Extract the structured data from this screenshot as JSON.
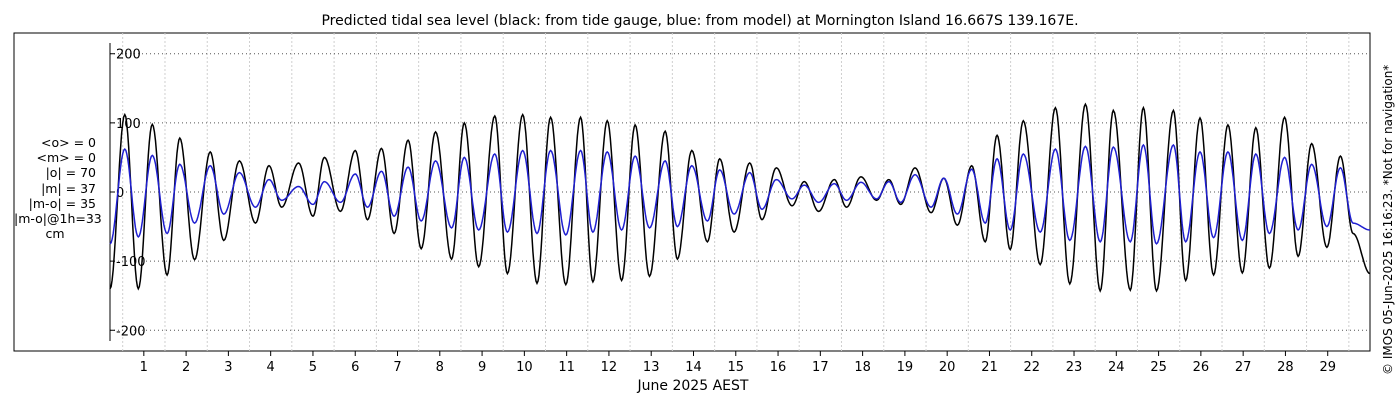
{
  "chart_data": {
    "type": "line",
    "title": "Predicted tidal sea level (black: from tide gauge, blue: from model) at Mornington Island 16.667S 139.167E.",
    "xlabel": "June 2025 AEST",
    "ylabel": "",
    "xlim": [
      0.2,
      30.0
    ],
    "ylim": [
      -230,
      230
    ],
    "x_ticks": [
      1,
      2,
      3,
      4,
      5,
      6,
      7,
      8,
      9,
      10,
      11,
      12,
      13,
      14,
      15,
      16,
      17,
      18,
      19,
      20,
      21,
      22,
      23,
      24,
      25,
      26,
      27,
      28,
      29
    ],
    "x_tick_labels": [
      "1",
      "2",
      "3",
      "4",
      "5",
      "6",
      "7",
      "8",
      "9",
      "10",
      "11",
      "12",
      "13",
      "14",
      "15",
      "16",
      "17",
      "18",
      "19",
      "20",
      "21",
      "22",
      "23",
      "24",
      "25",
      "26",
      "27",
      "28",
      "29"
    ],
    "y_ticks": [
      -200,
      -100,
      0,
      100,
      200
    ],
    "y_tick_labels": [
      "-200",
      "-100",
      "0",
      "100",
      "200"
    ],
    "grid": true,
    "series": [
      {
        "name": "tide gauge",
        "color": "#000000",
        "x": [
          0.2,
          0.55,
          0.87,
          1.2,
          1.55,
          1.85,
          2.2,
          2.57,
          2.89,
          3.26,
          3.64,
          3.96,
          4.26,
          4.66,
          5.0,
          5.27,
          5.65,
          6.0,
          6.29,
          6.62,
          6.92,
          7.25,
          7.56,
          7.9,
          8.28,
          8.58,
          8.92,
          9.3,
          9.6,
          9.96,
          10.3,
          10.62,
          10.98,
          11.33,
          11.62,
          11.96,
          12.3,
          12.62,
          12.96,
          13.33,
          13.62,
          13.96,
          14.33,
          14.62,
          14.96,
          15.33,
          15.62,
          15.96,
          16.33,
          16.62,
          16.96,
          17.33,
          17.62,
          17.96,
          18.33,
          18.62,
          18.9,
          19.24,
          19.62,
          19.92,
          20.24,
          20.58,
          20.9,
          21.18,
          21.49,
          21.8,
          22.2,
          22.56,
          22.9,
          23.27,
          23.62,
          23.93,
          24.33,
          24.64,
          24.95,
          25.35,
          25.64,
          25.98,
          26.3,
          26.64,
          26.98,
          27.3,
          27.62,
          27.98,
          28.3,
          28.62,
          28.98,
          29.3,
          29.6,
          30.0
        ],
        "y": [
          -140,
          112,
          -140,
          98,
          -120,
          78,
          -98,
          58,
          -70,
          45,
          -45,
          38,
          -22,
          42,
          -35,
          50,
          -28,
          60,
          -40,
          63,
          -60,
          75,
          -82,
          87,
          -97,
          100,
          -108,
          110,
          -118,
          112,
          -132,
          108,
          -134,
          108,
          -130,
          103,
          -128,
          97,
          -122,
          88,
          -97,
          60,
          -72,
          48,
          -58,
          42,
          -40,
          35,
          -20,
          15,
          -28,
          18,
          -22,
          22,
          -12,
          18,
          -18,
          35,
          -30,
          20,
          -48,
          38,
          -72,
          82,
          -83,
          103,
          -105,
          122,
          -133,
          127,
          -143,
          118,
          -142,
          122,
          -143,
          118,
          -128,
          107,
          -120,
          97,
          -117,
          93,
          -110,
          108,
          -93,
          70,
          -80,
          52,
          -60,
          -118
        ]
      },
      {
        "name": "model",
        "color": "#1f1fd0",
        "x": [
          0.2,
          0.55,
          0.87,
          1.2,
          1.55,
          1.85,
          2.2,
          2.57,
          2.89,
          3.26,
          3.64,
          3.96,
          4.26,
          4.66,
          5.0,
          5.27,
          5.65,
          6.0,
          6.29,
          6.62,
          6.92,
          7.25,
          7.56,
          7.9,
          8.28,
          8.58,
          8.92,
          9.3,
          9.6,
          9.96,
          10.3,
          10.62,
          10.98,
          11.33,
          11.62,
          11.96,
          12.3,
          12.62,
          12.96,
          13.33,
          13.62,
          13.96,
          14.33,
          14.62,
          14.96,
          15.33,
          15.62,
          15.96,
          16.33,
          16.62,
          16.96,
          17.33,
          17.62,
          17.96,
          18.33,
          18.62,
          18.9,
          19.24,
          19.62,
          19.92,
          20.24,
          20.58,
          20.9,
          21.18,
          21.49,
          21.8,
          22.2,
          22.56,
          22.9,
          23.27,
          23.62,
          23.93,
          24.33,
          24.64,
          24.95,
          25.35,
          25.64,
          25.98,
          26.3,
          26.64,
          26.98,
          27.3,
          27.62,
          27.98,
          28.3,
          28.62,
          28.98,
          29.3,
          29.6,
          30.0
        ],
        "y": [
          -75,
          62,
          -65,
          53,
          -60,
          40,
          -45,
          38,
          -32,
          28,
          -22,
          18,
          -12,
          8,
          -18,
          15,
          -15,
          26,
          -22,
          30,
          -35,
          36,
          -42,
          45,
          -52,
          50,
          -55,
          55,
          -58,
          60,
          -60,
          60,
          -62,
          60,
          -58,
          58,
          -55,
          52,
          -52,
          45,
          -50,
          38,
          -42,
          32,
          -32,
          28,
          -25,
          18,
          -10,
          10,
          -15,
          12,
          -12,
          14,
          -10,
          15,
          -15,
          25,
          -22,
          20,
          -32,
          33,
          -45,
          48,
          -55,
          55,
          -58,
          62,
          -70,
          66,
          -72,
          65,
          -72,
          68,
          -75,
          68,
          -72,
          58,
          -66,
          58,
          -70,
          55,
          -60,
          50,
          -55,
          40,
          -50,
          35,
          -45,
          -55
        ]
      }
    ]
  },
  "stats": {
    "mean_obs": "<o> = 0",
    "mean_model": "<m> = 0",
    "abs_obs": "|o| = 70",
    "abs_model": "|m| = 37",
    "abs_diff": "|m-o| = 35",
    "abs_diff_1h": "|m-o|@1h=33",
    "unit": "cm"
  },
  "credit": "© IMOS 05-Jun-2025 16:16:23. *Not for navigation*"
}
